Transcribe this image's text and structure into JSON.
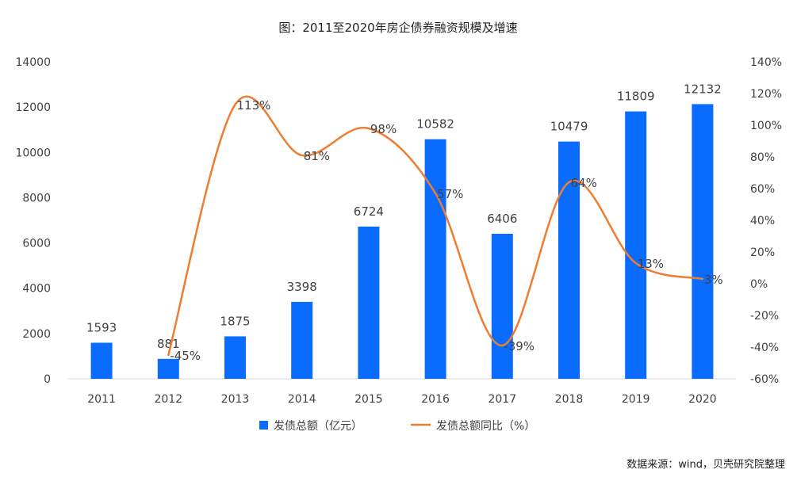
{
  "chart_data": {
    "type": "bar",
    "title": "图：2011至2020年房企债券融资规模及增速",
    "categories": [
      "2011",
      "2012",
      "2013",
      "2014",
      "2015",
      "2016",
      "2017",
      "2018",
      "2019",
      "2020"
    ],
    "series": [
      {
        "name": "发债总额（亿元）",
        "type": "bar",
        "axis": "left",
        "values": [
          1593,
          881,
          1875,
          3398,
          6724,
          10582,
          6406,
          10479,
          11809,
          12132
        ],
        "labels": [
          "1593",
          "881",
          "1875",
          "3398",
          "6724",
          "10582",
          "6406",
          "10479",
          "11809",
          "12132"
        ]
      },
      {
        "name": "发债总额同比（%）",
        "type": "line",
        "axis": "right",
        "values": [
          null,
          -45,
          113,
          81,
          98,
          57,
          -39,
          64,
          13,
          3
        ],
        "labels": [
          "",
          "-45%",
          "113%",
          "81%",
          "98%",
          "57%",
          "-39%",
          "64%",
          "13%",
          "3%"
        ]
      }
    ],
    "y_left": {
      "min": 0,
      "max": 14000,
      "step": 2000,
      "ticks": [
        "0",
        "2000",
        "4000",
        "6000",
        "8000",
        "10000",
        "12000",
        "14000"
      ]
    },
    "y_right": {
      "min": -60,
      "max": 140,
      "step": 20,
      "ticks": [
        "-60%",
        "-40%",
        "-20%",
        "0%",
        "20%",
        "40%",
        "60%",
        "80%",
        "100%",
        "120%",
        "140%"
      ]
    },
    "grid": false,
    "legend_position": "bottom",
    "source": "数据来源：wind，贝壳研究院整理",
    "colors": {
      "bar": "#0A6CFF",
      "line": "#ED7D31",
      "text": "#404040",
      "axis": "#D9D9D9"
    }
  }
}
